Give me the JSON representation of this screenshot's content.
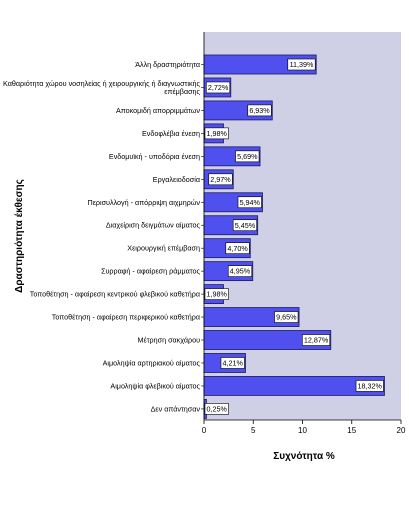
{
  "chart_data": {
    "type": "bar",
    "orientation": "horizontal",
    "xlabel": "Συχνότητα %",
    "ylabel": "Δραστηριότητα έκθεσης",
    "xlim": [
      0,
      20
    ],
    "xticks": [
      0,
      5,
      10,
      15,
      20
    ],
    "colors": {
      "plot_background": "#cfcfe6",
      "bar_fill": "#5050ee",
      "bar_stroke": "#1a1a60",
      "label_box": "#ffffff"
    },
    "categories": [
      "Άλλη δραστηριότητα",
      "Καθαριότητα χώρου νοσηλείας ή χειρουργικής ή διαγνωστικής επέμβασης",
      "Αποκομιδή απορριμμάτων",
      "Ενδοφλέβια ένεση",
      "Ενδομυϊκή - υποδόρια ένεση",
      "Εργαλειοδοσία",
      "Περισυλλογή - απόρριψη αιχμηρών",
      "Διαχείριση δειγμάτων αίματος",
      "Χειρουργική επέμβαση",
      "Συρραφή - αφαίρεση ράμματος",
      "Τοποθέτηση - αφαίρεση κεντρικού φλεβικού καθετήρα",
      "Τοποθέτηση - αφαίρεση περιφερικού καθετήρα",
      "Μέτρηση σακχάρου",
      "Αιμοληψία αρτηριακού αίματος",
      "Αιμοληψία φλεβικού αίματος",
      "Δεν απάντησαν"
    ],
    "values": [
      11.39,
      2.72,
      6.93,
      1.98,
      5.69,
      2.97,
      5.94,
      5.45,
      4.7,
      4.95,
      1.98,
      9.65,
      12.87,
      4.21,
      18.32,
      0.25
    ],
    "data_labels": [
      "11,39%",
      "2,72%",
      "6,93%",
      "1,98%",
      "5,69%",
      "2,97%",
      "5,94%",
      "5,45%",
      "4,70%",
      "4,95%",
      "1,98%",
      "9,65%",
      "12,87%",
      "4,21%",
      "18,32%",
      "0,25%"
    ]
  }
}
